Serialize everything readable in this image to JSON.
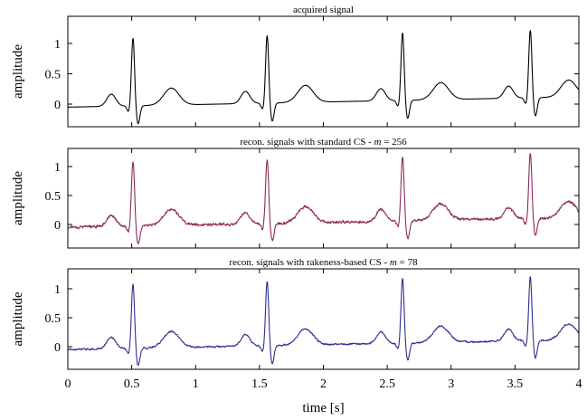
{
  "chart_data": [
    {
      "type": "line",
      "title": "acquired signal",
      "title_italic": "",
      "title_suffix": "",
      "ylabel": "amplitude",
      "xlabel": "",
      "xlim": [
        0,
        4
      ],
      "ylim": [
        -0.3,
        1.3
      ],
      "yticks": [
        {
          "value": 0,
          "label": "0"
        },
        {
          "value": 0.5,
          "label": "0.5"
        },
        {
          "value": 1,
          "label": "1"
        }
      ],
      "xticks": [
        0,
        0.5,
        1,
        1.5,
        2,
        2.5,
        3,
        3.5,
        4
      ],
      "series": [
        {
          "color": "#000000",
          "noise": 0,
          "beats": [
            0.51,
            1.56,
            2.62,
            3.62
          ],
          "baseline_start": -0.05,
          "baseline_end": 0.12
        }
      ]
    },
    {
      "type": "line",
      "title": "recon. signals with standard CS - ",
      "title_italic": "m",
      "title_suffix": " = 256",
      "ylabel": "amplitude",
      "xlabel": "",
      "xlim": [
        0,
        4
      ],
      "ylim": [
        -0.3,
        1.3
      ],
      "yticks": [
        {
          "value": 0,
          "label": "0"
        },
        {
          "value": 0.5,
          "label": "0.5"
        },
        {
          "value": 1,
          "label": "1"
        }
      ],
      "xticks": [
        0,
        0.5,
        1,
        1.5,
        2,
        2.5,
        3,
        3.5,
        4
      ],
      "series": [
        {
          "color": "#8b2a5a",
          "noise": 0.018,
          "beats": [
            0.51,
            1.56,
            2.62,
            3.62
          ],
          "baseline_start": -0.05,
          "baseline_end": 0.12
        }
      ]
    },
    {
      "type": "line",
      "title": "recon. signals with rakeness-based CS - ",
      "title_italic": "m",
      "title_suffix": " = 78",
      "ylabel": "amplitude",
      "xlabel": "time [s]",
      "xlim": [
        0,
        4
      ],
      "ylim": [
        -0.3,
        1.3
      ],
      "yticks": [
        {
          "value": 0,
          "label": "0"
        },
        {
          "value": 0.5,
          "label": "0.5"
        },
        {
          "value": 1,
          "label": "1"
        }
      ],
      "xticks": [
        0,
        0.5,
        1,
        1.5,
        2,
        2.5,
        3,
        3.5,
        4
      ],
      "series": [
        {
          "color": "#2e2e8f",
          "noise": 0.012,
          "beats": [
            0.51,
            1.56,
            2.62,
            3.62
          ],
          "baseline_start": -0.05,
          "baseline_end": 0.12
        }
      ]
    }
  ]
}
